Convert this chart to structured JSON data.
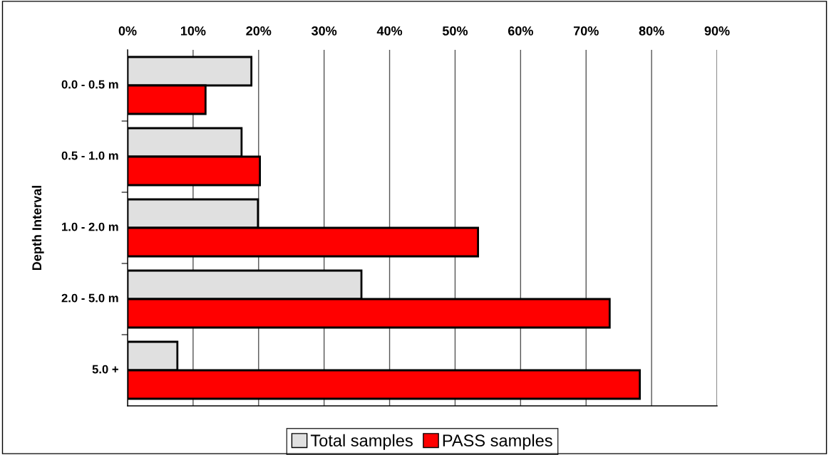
{
  "chart_data": {
    "type": "bar",
    "orientation": "horizontal",
    "ylabel": "Depth Interval",
    "categories": [
      "0.0 - 0.5 m",
      "0.5 - 1.0 m",
      "1.0 - 2.0 m",
      "2.0 - 5.0 m",
      "5.0 +"
    ],
    "series": [
      {
        "name": "Total samples",
        "color": "#e0e0e0",
        "values": [
          18.9,
          17.4,
          19.9,
          35.7,
          7.6
        ]
      },
      {
        "name": "PASS samples",
        "color": "#ff0000",
        "values": [
          11.9,
          20.2,
          53.5,
          73.6,
          78.2
        ]
      }
    ],
    "xlim": [
      0,
      90
    ],
    "xticks": [
      {
        "value": 0,
        "label": "0%"
      },
      {
        "value": 10,
        "label": "10%"
      },
      {
        "value": 20,
        "label": "20%"
      },
      {
        "value": 30,
        "label": "30%"
      },
      {
        "value": 40,
        "label": "40%"
      },
      {
        "value": 50,
        "label": "50%"
      },
      {
        "value": 60,
        "label": "60%"
      },
      {
        "value": 70,
        "label": "70%"
      },
      {
        "value": 80,
        "label": "80%"
      },
      {
        "value": 90,
        "label": "90%"
      }
    ],
    "grid": "x",
    "legend": "bottom"
  }
}
